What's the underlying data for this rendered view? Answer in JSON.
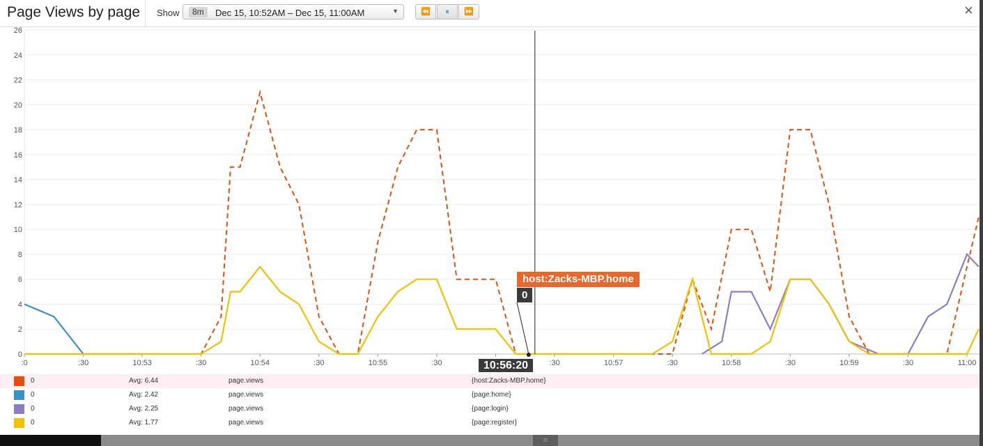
{
  "header": {
    "title": "Page Views by page",
    "show_label": "Show",
    "range_badge": "8m",
    "range_text": "Dec 15, 10:52AM – Dec 15, 11:00AM",
    "back_icon": "⏪",
    "pause_icon": "⏸",
    "forward_icon": "⏩",
    "close_icon": "×"
  },
  "cursor": {
    "host": "host:Zacks-MBP.home",
    "value": "0",
    "time": "10:56:20",
    "time_minutes": 4.333
  },
  "chart_data": {
    "type": "line",
    "title": "Page Views by page",
    "xlabel": "",
    "ylabel": "",
    "x_unit": "minutes after 10:52:00",
    "xlim": [
      0,
      8.0
    ],
    "ylim": [
      0,
      26
    ],
    "yticks": [
      0,
      2,
      4,
      6,
      8,
      10,
      12,
      14,
      16,
      18,
      20,
      22,
      24,
      26
    ],
    "xticks": [
      {
        "x": 0.0,
        "label": ":0"
      },
      {
        "x": 0.5,
        "label": ":30"
      },
      {
        "x": 1.0,
        "label": "10:53"
      },
      {
        "x": 1.5,
        "label": ":30"
      },
      {
        "x": 2.0,
        "label": "10:54"
      },
      {
        "x": 2.5,
        "label": ":30"
      },
      {
        "x": 3.0,
        "label": "10:55"
      },
      {
        "x": 3.5,
        "label": ":30"
      },
      {
        "x": 4.0,
        "label": "10:56"
      },
      {
        "x": 4.5,
        "label": ":30"
      },
      {
        "x": 5.0,
        "label": "10:57"
      },
      {
        "x": 5.5,
        "label": ":30"
      },
      {
        "x": 6.0,
        "label": "10:58"
      },
      {
        "x": 6.5,
        "label": ":30"
      },
      {
        "x": 7.0,
        "label": "10:59"
      },
      {
        "x": 7.5,
        "label": ":30"
      },
      {
        "x": 8.0,
        "label": "11:00"
      }
    ],
    "series": [
      {
        "name": "{host:Zacks-MBP.home}",
        "color": "#e34f0f",
        "dashed": true,
        "x": [
          0,
          0.25,
          0.5,
          0.75,
          1.0,
          1.25,
          1.5,
          1.67,
          1.75,
          1.83,
          2.0,
          2.17,
          2.33,
          2.5,
          2.67,
          2.83,
          3.0,
          3.17,
          3.33,
          3.5,
          3.67,
          3.83,
          4.0,
          4.17,
          4.33,
          4.5,
          4.67,
          4.83,
          5.0,
          5.17,
          5.33,
          5.5,
          5.67,
          5.83,
          6.0,
          6.17,
          6.33,
          6.5,
          6.67,
          6.83,
          7.0,
          7.17,
          7.33,
          7.5,
          7.67,
          7.83,
          8.0,
          8.1
        ],
        "values": [
          0,
          0,
          0,
          0,
          0,
          0,
          0,
          3,
          15,
          15,
          21,
          15,
          12,
          3,
          0,
          0,
          9,
          15,
          18,
          18,
          6,
          6,
          6,
          0,
          0,
          0,
          0,
          0,
          0,
          0,
          0,
          0,
          6,
          2,
          10,
          10,
          5,
          18,
          18,
          12,
          3,
          0,
          0,
          0,
          0,
          0,
          7,
          11
        ]
      },
      {
        "name": "{page:home}",
        "color": "#3a91c8",
        "dashed": false,
        "x": [
          0,
          0.25,
          0.5,
          0.75,
          1.0
        ],
        "values": [
          4,
          3,
          0,
          0,
          0
        ]
      },
      {
        "name": "{page:login}",
        "color": "#8e7cc3",
        "dashed": false,
        "x": [
          5.75,
          5.92,
          6.0,
          6.17,
          6.33,
          6.5,
          6.67,
          6.83,
          7.0,
          7.25,
          7.5,
          7.67,
          7.83,
          8.0,
          8.1
        ],
        "values": [
          0,
          1,
          5,
          5,
          2,
          6,
          6,
          4,
          1,
          0,
          0,
          3,
          4,
          8,
          7
        ]
      },
      {
        "name": "{page:register}",
        "color": "#f2c100",
        "dashed": false,
        "x": [
          0,
          0.25,
          0.5,
          0.75,
          1.0,
          1.25,
          1.5,
          1.67,
          1.75,
          1.83,
          2.0,
          2.17,
          2.33,
          2.5,
          2.67,
          2.83,
          3.0,
          3.17,
          3.33,
          3.5,
          3.67,
          3.83,
          4.0,
          4.17,
          4.33,
          4.5,
          4.67,
          4.83,
          5.0,
          5.17,
          5.33,
          5.5,
          5.67,
          5.83,
          6.0,
          6.17,
          6.33,
          6.5,
          6.67,
          6.83,
          7.0,
          7.17,
          7.33,
          7.5,
          7.67,
          7.83,
          8.0,
          8.1
        ],
        "values": [
          0,
          0,
          0,
          0,
          0,
          0,
          0,
          1,
          5,
          5,
          7,
          5,
          4,
          1,
          0,
          0,
          3,
          5,
          6,
          6,
          2,
          2,
          2,
          0,
          0,
          0,
          0,
          0,
          0,
          0,
          0,
          1,
          6,
          0,
          0,
          0,
          1,
          6,
          6,
          4,
          1,
          0,
          0,
          0,
          0,
          0,
          0,
          2
        ]
      }
    ]
  },
  "legend": [
    {
      "value": "0",
      "avg": "Avg: 6.44",
      "metric": "page.views",
      "tags": "{host:Zacks-MBP.home}",
      "color": "#e34f0f"
    },
    {
      "value": "0",
      "avg": "Avg: 2.42",
      "metric": "page.views",
      "tags": "{page:home}",
      "color": "#3a91c8"
    },
    {
      "value": "0",
      "avg": "Avg: 2.25",
      "metric": "page.views",
      "tags": "{page:login}",
      "color": "#8e7cc3"
    },
    {
      "value": "0",
      "avg": "Avg: 1.77",
      "metric": "page.views",
      "tags": "{page:register}",
      "color": "#f2c100"
    }
  ],
  "footer": {
    "grip_icon": "≡"
  }
}
